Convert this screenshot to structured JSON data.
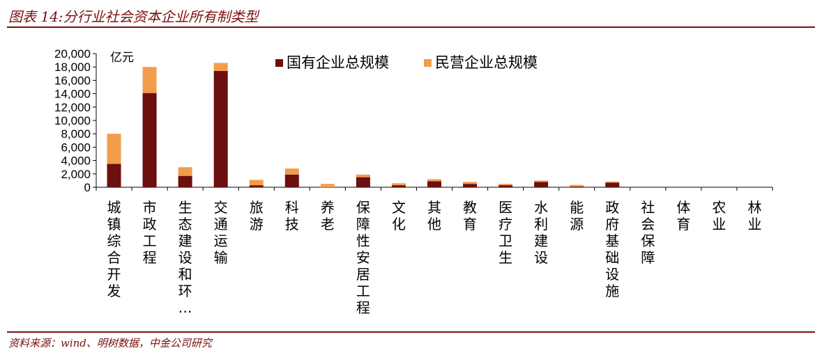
{
  "figure": {
    "title": "图表 14:分行业社会资本企业所有制类型",
    "source": "资料来源：wind、明树数据，中金公司研究"
  },
  "chart_data": {
    "type": "bar",
    "stacked": true,
    "unit_label": "亿元",
    "categories": [
      "城镇综合开发",
      "市政工程",
      "生态建设和环…",
      "交通运输",
      "旅游",
      "科技",
      "养老",
      "保障性安居工程",
      "文化",
      "其他",
      "教育",
      "医疗卫生",
      "水利建设",
      "能源",
      "政府基础设施",
      "社会保障",
      "体育",
      "农业",
      "林业"
    ],
    "series": [
      {
        "name": "国有企业总规模",
        "color": "#6b0f0f",
        "values": [
          3500,
          14100,
          1700,
          17400,
          300,
          1900,
          0,
          1500,
          300,
          900,
          500,
          300,
          800,
          100,
          700,
          0,
          0,
          0,
          0
        ]
      },
      {
        "name": "民营企业总规模",
        "color": "#f39c4b",
        "values": [
          4500,
          3900,
          1300,
          1200,
          800,
          900,
          500,
          400,
          300,
          300,
          300,
          200,
          200,
          250,
          150,
          0,
          0,
          0,
          0
        ]
      }
    ],
    "y_ticks": [
      "0",
      "2,000",
      "4,000",
      "6,000",
      "8,000",
      "10,000",
      "12,000",
      "14,000",
      "16,000",
      "18,000",
      "20,000"
    ],
    "ylim": [
      0,
      20000
    ],
    "grid": false,
    "legend_position": "top"
  }
}
